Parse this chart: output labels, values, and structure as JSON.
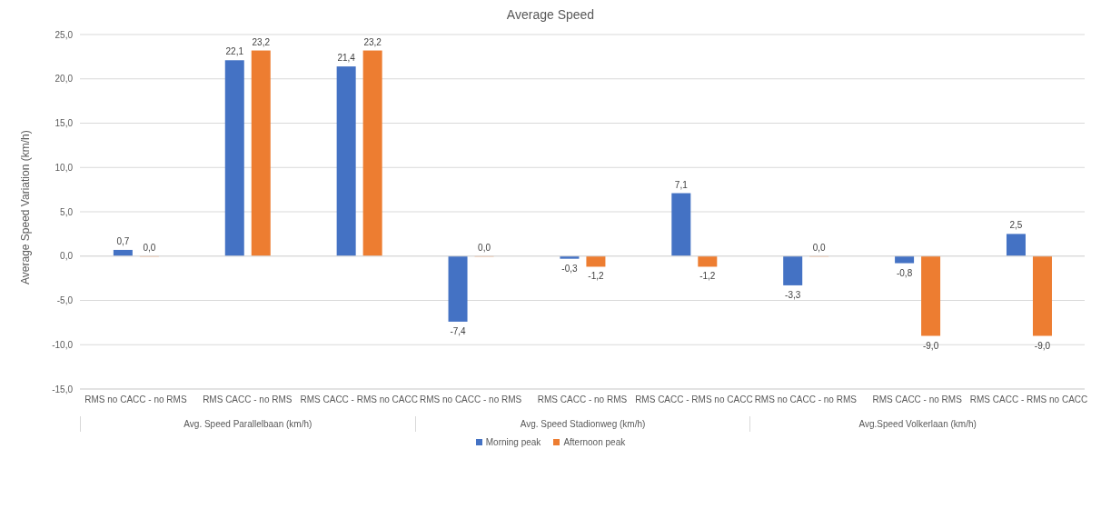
{
  "chart_data": {
    "type": "bar",
    "title": "Average Speed",
    "ylabel": "Average Speed Variation (km/h)",
    "categories": [
      "RMS no CACC - no RMS",
      "RMS CACC - no RMS",
      "RMS CACC - RMS no CACC",
      "RMS no CACC - no RMS",
      "RMS CACC - no RMS",
      "RMS CACC - RMS no CACC",
      "RMS no CACC - no RMS",
      "RMS CACC - no RMS",
      "RMS CACC - RMS no CACC"
    ],
    "annotations": [
      "Avg. Speed Parallelbaan (km/h)",
      "Avg. Speed Stadionweg (km/h)",
      "Avg.Speed Volkerlaan (km/h)"
    ],
    "series": [
      {
        "name": "Morning peak",
        "color": "#4472c4",
        "values": [
          0.7,
          22.1,
          21.4,
          -7.4,
          -0.3,
          7.1,
          -3.3,
          -0.8,
          2.5
        ],
        "value_labels": [
          "0,7",
          "22,1",
          "21,4",
          "-7,4",
          "-0,3",
          "7,1",
          "-3,3",
          "-0,8",
          "2,5"
        ]
      },
      {
        "name": "Afternoon peak",
        "color": "#ed7d31",
        "values": [
          0.0,
          23.2,
          23.2,
          0.0,
          -1.2,
          -1.2,
          0.0,
          -9.0,
          -9.0
        ],
        "value_labels": [
          "0,0",
          "23,2",
          "23,2",
          "0,0",
          "-1,2",
          "-1,2",
          "0,0",
          "-9,0",
          "-9,0"
        ]
      }
    ],
    "ylim": [
      -15,
      25
    ],
    "yticks": [
      {
        "value": -15,
        "label": "-15,0"
      },
      {
        "value": -10,
        "label": "-10,0"
      },
      {
        "value": -5,
        "label": "-5,0"
      },
      {
        "value": 0,
        "label": "0,0"
      },
      {
        "value": 5,
        "label": "5,0"
      },
      {
        "value": 10,
        "label": "10,0"
      },
      {
        "value": 15,
        "label": "15,0"
      },
      {
        "value": 20,
        "label": "20,0"
      },
      {
        "value": 25,
        "label": "25,0"
      }
    ],
    "grid": "y",
    "legend": "bottom"
  }
}
